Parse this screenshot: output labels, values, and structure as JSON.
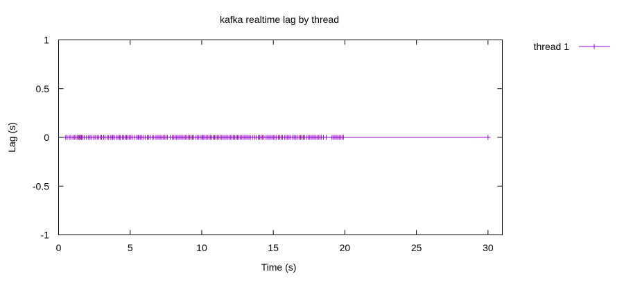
{
  "chart_data": {
    "type": "line",
    "title": "kafka realtime lag by thread",
    "xlabel": "Time (s)",
    "ylabel": "Lag (s)",
    "xlim": [
      0,
      31
    ],
    "ylim": [
      -1,
      1
    ],
    "x_ticks": [
      0,
      5,
      10,
      15,
      20,
      25,
      30
    ],
    "y_ticks": [
      -1,
      -0.5,
      0,
      0.5,
      1
    ],
    "x_tick_labels": [
      "0",
      "5",
      "10",
      "15",
      "20",
      "25",
      "30"
    ],
    "y_tick_labels": [
      "-1",
      "-0.5",
      "0",
      "0.5",
      "1"
    ],
    "grid": false,
    "legend": "top-right, outside plot",
    "series": [
      {
        "name": "thread 1",
        "color": "#9400d3",
        "marker": "plus",
        "x": [
          0.5,
          0.6,
          0.75,
          0.85,
          1.0,
          1.1,
          1.2,
          1.3,
          1.4,
          1.45,
          1.55,
          1.6,
          1.7,
          1.8,
          1.95,
          2.1,
          2.2,
          2.3,
          2.45,
          2.55,
          2.7,
          2.8,
          2.95,
          3.0,
          3.15,
          3.25,
          3.4,
          3.5,
          3.65,
          3.75,
          3.8,
          3.9,
          4.05,
          4.15,
          4.25,
          4.3,
          4.45,
          4.55,
          4.65,
          4.75,
          4.85,
          4.95,
          5.05,
          5.15,
          5.3,
          5.45,
          5.55,
          5.6,
          5.7,
          5.8,
          5.9,
          6.05,
          6.2,
          6.3,
          6.4,
          6.55,
          6.65,
          6.8,
          6.9,
          7.0,
          7.1,
          7.2,
          7.3,
          7.4,
          7.5,
          7.6,
          7.8,
          7.95,
          8.05,
          8.15,
          8.25,
          8.35,
          8.45,
          8.55,
          8.65,
          8.75,
          8.85,
          8.95,
          9.05,
          9.15,
          9.25,
          9.35,
          9.45,
          9.6,
          9.7,
          9.8,
          9.95,
          10.05,
          10.1,
          10.2,
          10.3,
          10.4,
          10.5,
          10.6,
          10.7,
          10.8,
          10.9,
          11.0,
          11.1,
          11.2,
          11.3,
          11.4,
          11.5,
          11.6,
          11.7,
          11.8,
          11.9,
          12.0,
          12.1,
          12.2,
          12.3,
          12.4,
          12.5,
          12.6,
          12.7,
          12.8,
          12.9,
          13.0,
          13.1,
          13.2,
          13.3,
          13.4,
          13.55,
          13.7,
          13.8,
          13.95,
          14.05,
          14.15,
          14.25,
          14.35,
          14.5,
          14.6,
          14.7,
          14.8,
          14.9,
          15.0,
          15.1,
          15.2,
          15.35,
          15.45,
          15.55,
          15.65,
          15.8,
          15.9,
          16.0,
          16.1,
          16.2,
          16.35,
          16.45,
          16.55,
          16.65,
          16.8,
          16.9,
          17.0,
          17.1,
          17.2,
          17.35,
          17.45,
          17.55,
          17.65,
          17.75,
          17.85,
          17.95,
          18.05,
          18.15,
          18.25,
          18.35,
          18.5,
          18.7,
          19.1,
          19.2,
          19.3,
          19.4,
          19.5,
          19.6,
          19.7,
          19.8,
          19.9,
          30.0
        ],
        "y": 0
      }
    ]
  }
}
